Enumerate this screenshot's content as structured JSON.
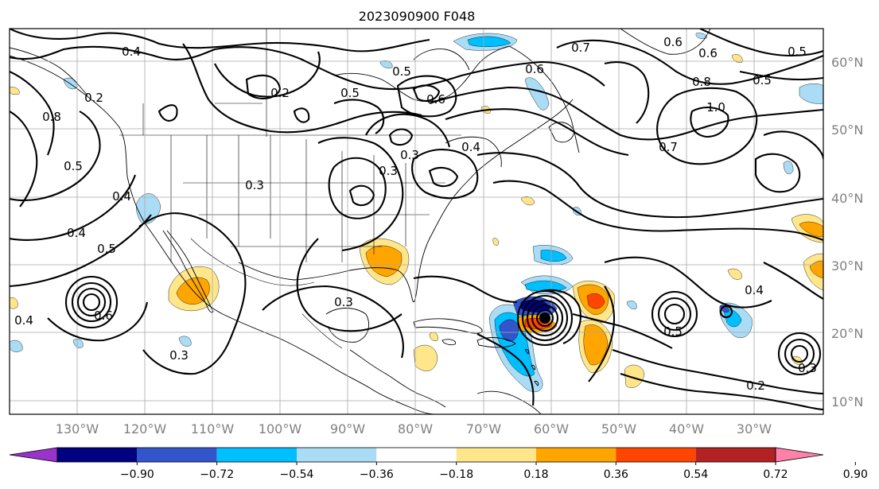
{
  "title": "2023090900 F048",
  "lat_labels": [
    "60°N",
    "50°N",
    "40°N",
    "30°N",
    "20°N",
    "10°N"
  ],
  "lon_labels": [
    "130°W",
    "120°W",
    "110°W",
    "100°W",
    "90°W",
    "80°W",
    "70°W",
    "60°W",
    "50°W",
    "40°W",
    "30°W"
  ],
  "colorbar": {
    "ticks": [
      "−0.90",
      "−0.72",
      "−0.54",
      "−0.36",
      "−0.18",
      "0.18",
      "0.36",
      "0.54",
      "0.72",
      "0.90"
    ],
    "colors": [
      "#9933cc",
      "#000080",
      "#3355cc",
      "#00bfff",
      "#aadcf5",
      "#ffffff",
      "#ffe68a",
      "#ffa500",
      "#ff4500",
      "#b22222",
      "#ff80a8"
    ]
  },
  "contour_labels": [
    {
      "text": "0.4"
    },
    {
      "text": "0.2"
    },
    {
      "text": "0.8"
    },
    {
      "text": "0.5"
    },
    {
      "text": "0.4"
    },
    {
      "text": "0.4"
    },
    {
      "text": "0.5"
    },
    {
      "text": "0.6"
    },
    {
      "text": "0.3"
    },
    {
      "text": "0.2"
    },
    {
      "text": "0.5"
    },
    {
      "text": "0.5"
    },
    {
      "text": "0.6"
    },
    {
      "text": "0.3"
    },
    {
      "text": "0.4"
    },
    {
      "text": "0.3"
    },
    {
      "text": "0.3"
    },
    {
      "text": "0.3"
    },
    {
      "text": "0.6"
    },
    {
      "text": "0.7"
    },
    {
      "text": "0.6"
    },
    {
      "text": "0.6"
    },
    {
      "text": "0.8"
    },
    {
      "text": "1.0"
    },
    {
      "text": "0.5"
    },
    {
      "text": "0.5"
    },
    {
      "text": "0.7"
    },
    {
      "text": "0.4"
    },
    {
      "text": "0.5"
    },
    {
      "text": "0.4"
    },
    {
      "text": "0.2"
    },
    {
      "text": "0.3"
    }
  ],
  "shading_colors": {
    "light_blue": "#aadcf5",
    "blue": "#00bfff",
    "dark_blue": "#3355cc",
    "navy": "#000080",
    "yellow": "#ffe68a",
    "orange": "#ffa500",
    "red_orange": "#ff4500"
  }
}
